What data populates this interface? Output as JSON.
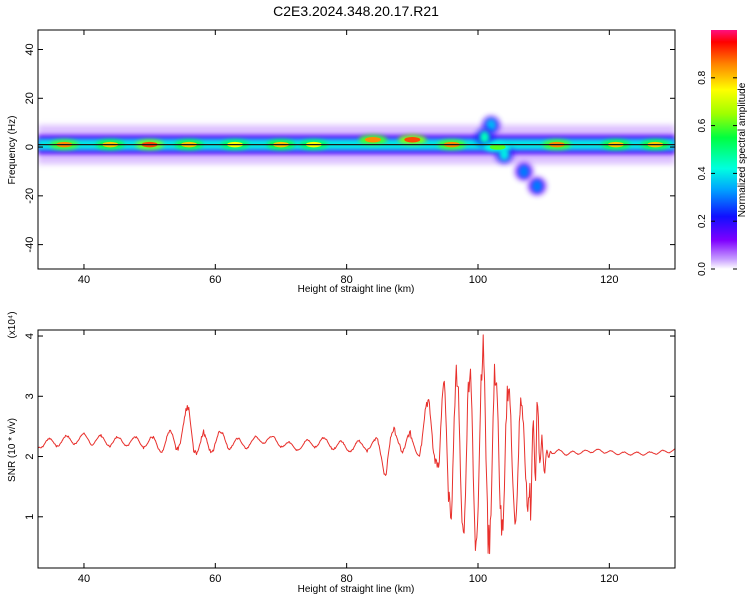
{
  "title": "C2E3.2024.348.20.17.R21",
  "colors": {
    "snr_line": "#e8302c",
    "band_center": "#1a1a1a",
    "axis": "#000000"
  },
  "chart_data": [
    {
      "type": "heatmap",
      "xlabel": "Height of straight line (km)",
      "ylabel": "Frequency (Hz)",
      "xlim": [
        33,
        130
      ],
      "ylim": [
        -50,
        48
      ],
      "xticks": [
        "40",
        "60",
        "80",
        "100",
        "120"
      ],
      "yticks": [
        "40",
        "20",
        "0",
        "-20",
        "-40"
      ],
      "colorbar": {
        "label": "Normalized spectral amplitude",
        "ticks": [
          "0.0",
          "0.2",
          "0.4",
          "0.6",
          "0.8"
        ],
        "range": [
          0,
          1
        ]
      },
      "band": {
        "center_hz": 1,
        "halfwidth_hz": 2.5
      },
      "hotspots": [
        {
          "x": 37,
          "y": 1,
          "level": 0.85
        },
        {
          "x": 44,
          "y": 1,
          "level": 0.8
        },
        {
          "x": 50,
          "y": 1,
          "level": 0.9
        },
        {
          "x": 56,
          "y": 1,
          "level": 0.8
        },
        {
          "x": 63,
          "y": 1,
          "level": 0.75
        },
        {
          "x": 70,
          "y": 1,
          "level": 0.8
        },
        {
          "x": 75,
          "y": 1,
          "level": 0.75
        },
        {
          "x": 84,
          "y": 3,
          "level": 0.85
        },
        {
          "x": 90,
          "y": 3,
          "level": 0.9
        },
        {
          "x": 96,
          "y": 1,
          "level": 0.85
        },
        {
          "x": 103,
          "y": 0,
          "level": 0.6
        },
        {
          "x": 112,
          "y": 1,
          "level": 0.85
        },
        {
          "x": 121,
          "y": 1,
          "level": 0.8
        },
        {
          "x": 127,
          "y": 1,
          "level": 0.8
        }
      ],
      "features": [
        {
          "x": 102,
          "y": 9,
          "level": 0.35
        },
        {
          "x": 101,
          "y": 4,
          "level": 0.45
        },
        {
          "x": 104,
          "y": -3,
          "level": 0.4
        },
        {
          "x": 107,
          "y": -10,
          "level": 0.3
        },
        {
          "x": 109,
          "y": -16,
          "level": 0.3
        }
      ]
    },
    {
      "type": "line",
      "xlabel": "Height of straight line (km)",
      "ylabel": "SNR (10 * v/v)",
      "multiplier": "(x10⁴)",
      "xlim": [
        33,
        130
      ],
      "ylim": [
        0.15,
        4.1
      ],
      "xticks": [
        "40",
        "60",
        "80",
        "100",
        "120"
      ],
      "yticks": [
        "4",
        "3",
        "2",
        "1"
      ],
      "series": [
        {
          "x": [
            33,
            36,
            40,
            44,
            48,
            52,
            54,
            56,
            58,
            60,
            64,
            68,
            72,
            76,
            80,
            84,
            86,
            88,
            90,
            92,
            94,
            95,
            96,
            97,
            98,
            99,
            100,
            101,
            102,
            103,
            104,
            105,
            106,
            107,
            108,
            109,
            110,
            111,
            114,
            118,
            122,
            126,
            130
          ],
          "y": [
            2.2,
            2.25,
            2.3,
            2.25,
            2.25,
            2.2,
            2.3,
            2.55,
            2.1,
            2.3,
            2.2,
            2.3,
            2.15,
            2.25,
            2.15,
            2.2,
            2.0,
            2.35,
            2.1,
            2.5,
            2.4,
            3.0,
            1.3,
            3.5,
            0.6,
            3.4,
            0.3,
            4.05,
            0.4,
            3.3,
            0.7,
            3.2,
            0.5,
            2.9,
            0.9,
            3.2,
            1.5,
            2.1,
            2.05,
            2.1,
            2.05,
            2.05,
            2.1
          ],
          "amplitude": [
            0.08,
            0.1,
            0.1,
            0.1,
            0.1,
            0.15,
            0.25,
            0.4,
            0.35,
            0.2,
            0.1,
            0.08,
            0.08,
            0.1,
            0.1,
            0.12,
            0.4,
            0.25,
            0.3,
            0.5,
            0.8,
            1.0,
            1.2,
            1.2,
            1.4,
            1.5,
            1.7,
            1.8,
            1.7,
            1.5,
            1.4,
            1.3,
            1.2,
            1.0,
            0.9,
            0.7,
            0.25,
            0.06,
            0.04,
            0.03,
            0.03,
            0.03,
            0.03
          ]
        }
      ]
    }
  ]
}
